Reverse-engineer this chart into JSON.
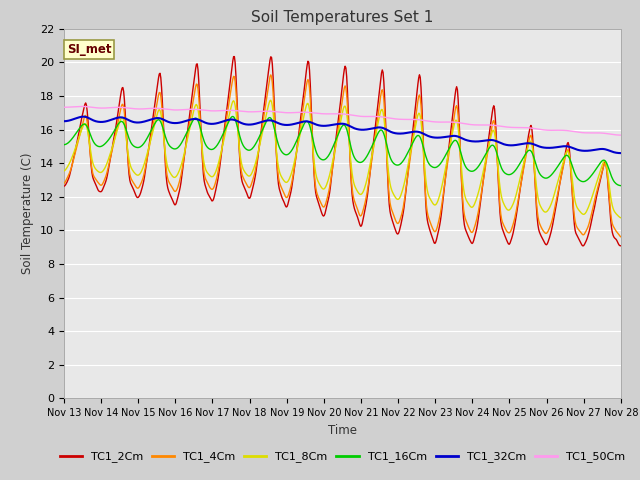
{
  "title": "Soil Temperatures Set 1",
  "xlabel": "Time",
  "ylabel": "Soil Temperature (C)",
  "ylim": [
    0,
    22
  ],
  "yticks": [
    0,
    2,
    4,
    6,
    8,
    10,
    12,
    14,
    16,
    18,
    20,
    22
  ],
  "date_labels": [
    "Nov 13",
    "Nov 14",
    "Nov 15",
    "Nov 16",
    "Nov 17",
    "Nov 18",
    "Nov 19",
    "Nov 20",
    "Nov 21",
    "Nov 22",
    "Nov 23",
    "Nov 24",
    "Nov 25",
    "Nov 26",
    "Nov 27",
    "Nov 28"
  ],
  "series_labels": [
    "TC1_2Cm",
    "TC1_4Cm",
    "TC1_8Cm",
    "TC1_16Cm",
    "TC1_32Cm",
    "TC1_50Cm"
  ],
  "series_colors": [
    "#cc0000",
    "#ff8800",
    "#dddd00",
    "#00cc00",
    "#0000cc",
    "#ff99ee"
  ],
  "annotation_text": "SI_met",
  "annotation_bg": "#ffffcc",
  "annotation_border": "#999944",
  "fig_bg": "#d0d0d0",
  "plot_bg": "#e8e8e8",
  "grid_color": "#ffffff",
  "n_days": 15,
  "pts_per_day": 48
}
